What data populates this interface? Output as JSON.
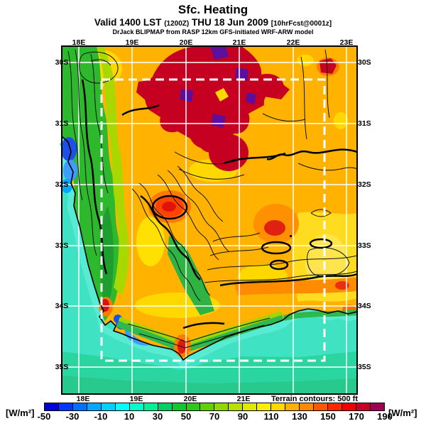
{
  "header": {
    "title": "Sfc. Heating",
    "valid_prefix": "Valid 1400 LST",
    "valid_time_paren": "(1200Z)",
    "valid_date": "THU 18 Jun 2009",
    "forecast_tag": "[10hrFcst@0001z]",
    "model_line": "DrJack BLIPMAP from RASP 12km GFS-initiated WRF-ARW model"
  },
  "map": {
    "top_longitude_labels": [
      "18E",
      "19E",
      "20E",
      "21E",
      "22E",
      "23E"
    ],
    "bottom_longitude_labels": [
      "18E",
      "19E",
      "20E",
      "21E"
    ],
    "left_latitude_labels": [
      "30S",
      "31S",
      "32S",
      "33S",
      "34S",
      "35S"
    ],
    "right_latitude_labels": [
      "30S",
      "31S",
      "32S",
      "33S",
      "34S",
      "35S"
    ],
    "terrain_note": "Terrain contours: 500 ft"
  },
  "colorbar": {
    "units_left": "[W/m²]",
    "units_right": "[W/m²]",
    "tick_labels": [
      "-50",
      "-30",
      "-10",
      "10",
      "30",
      "50",
      "70",
      "90",
      "110",
      "130",
      "150",
      "170",
      "190"
    ],
    "colors": [
      "#0000D8",
      "#0038FF",
      "#0070FF",
      "#00A8FF",
      "#00D0FF",
      "#00FFFF",
      "#00FFC8",
      "#00F096",
      "#00D060",
      "#10C830",
      "#30C818",
      "#60D000",
      "#90D800",
      "#B8E000",
      "#E0E800",
      "#F8F000",
      "#FFD800",
      "#FFB000",
      "#FF8800",
      "#FF5800",
      "#FF2800",
      "#F00000",
      "#C80028",
      "#A00050"
    ]
  },
  "chart_data": {
    "type": "heatmap",
    "title": "Sfc. Heating",
    "units": "W/m²",
    "valid": "Valid 1400 LST (1200Z) THU 18 Jun 2009 [10hrFcst@0001z]",
    "model": "DrJack BLIPMAP from RASP 12km GFS-initiated WRF-ARW model",
    "x_axis": {
      "label": "longitude",
      "ticks": [
        "18E",
        "19E",
        "20E",
        "21E",
        "22E",
        "23E"
      ],
      "range_deg_east": [
        17.7,
        23.2
      ]
    },
    "y_axis": {
      "label": "latitude",
      "ticks": [
        "30S",
        "31S",
        "32S",
        "33S",
        "34S",
        "35S"
      ],
      "range_deg_south": [
        29.75,
        35.45
      ]
    },
    "colorbar": {
      "min": -50,
      "max": 190,
      "segment_step": 10,
      "label_step": 20,
      "ticks": [
        -50,
        -30,
        -10,
        10,
        30,
        50,
        70,
        90,
        110,
        130,
        150,
        170,
        190
      ],
      "colors": [
        "#0000D8",
        "#0038FF",
        "#0070FF",
        "#00A8FF",
        "#00D0FF",
        "#00FFFF",
        "#00FFC8",
        "#00F096",
        "#00D060",
        "#10C830",
        "#30C818",
        "#60D000",
        "#90D800",
        "#B8E000",
        "#E0E800",
        "#F8F000",
        "#FFD800",
        "#FFB000",
        "#FF8800",
        "#FF5800",
        "#FF2800",
        "#F00000",
        "#C80028",
        "#A00050"
      ]
    },
    "overlays": {
      "terrain_contour_interval": "500 ft",
      "grid": "1 degree white lat/lon lines",
      "inner_domain_box": "white dashed rectangle approx 18.4E-22.6E, 30.3S-34.9S"
    },
    "regions": [
      {
        "area": "northern interior ~19.3E-21.5E, 30S-31.3S",
        "value_wm2": "170-190",
        "note": "dark red cluster with purple over-range patches"
      },
      {
        "area": "most interior plateau land",
        "value_wm2": "100-130",
        "note": "orange/yellow base"
      },
      {
        "area": "western mountain strip ~18E-18.6E, 30S-33S",
        "value_wm2": "30-70",
        "note": "green band with dense terrain contours"
      },
      {
        "area": "west coast offshore ~17.8E, 31.2S-32.1S",
        "value_wm2": "-40 to -10",
        "note": "blue patches"
      },
      {
        "area": "southwest and south ocean",
        "value_wm2": "10-40",
        "note": "cyan to green bands"
      },
      {
        "area": "Cape Peninsula hotspot ~18.5E 34.0S",
        "value_wm2": "150-170"
      },
      {
        "area": "southern tip hotspot ~19.9E 34.7S",
        "value_wm2": "150-170"
      },
      {
        "area": "valley hotspots ~19.8E 32.6S and ~21.6E 33.0S",
        "value_wm2": "150-180"
      }
    ]
  }
}
